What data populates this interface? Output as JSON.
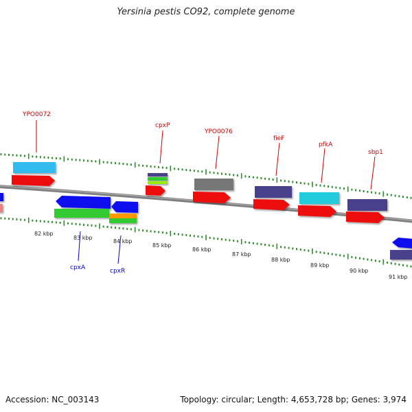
{
  "title": "Yersinia pestis CO92, complete genome",
  "footer": {
    "accession": "Accession: NC_003143",
    "summary": "Topology: circular; Length: 4,653,728 bp; Genes: 3,974"
  },
  "colors": {
    "backbone": "#808080",
    "tick": "#2e8b2e",
    "label_top": "#cc0000",
    "label_bottom": "#0000cc",
    "red": "#ee1111",
    "cyan": "#22ccdd",
    "sky": "#33bbee",
    "blue": "#1111ee",
    "slate": "#4a3f8c",
    "grey": "#777777",
    "green": "#33cc33",
    "orange": "#ff9900",
    "lime": "#99ee00",
    "salmon": "#f08080"
  },
  "scale_labels": [
    "82 kbp",
    "83 kbp",
    "84 kbp",
    "85 kbp",
    "86 kbp",
    "87 kbp",
    "88 kbp",
    "89 kbp",
    "90 kbp",
    "91 kbp"
  ],
  "gene_labels_top": [
    "YPO0072",
    "cpxP",
    "YPO0076",
    "fieF",
    "pfkA",
    "sbp1"
  ],
  "gene_labels_bottom": [
    "cpxA",
    "cpxR"
  ]
}
